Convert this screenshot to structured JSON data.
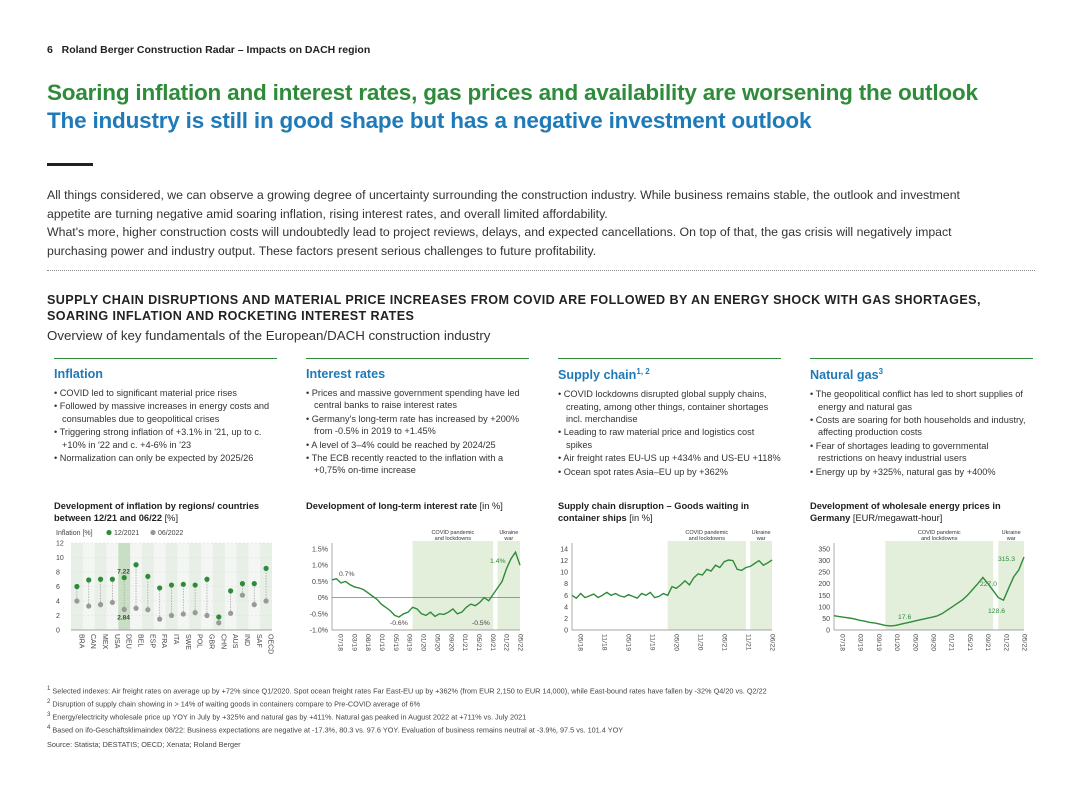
{
  "header": {
    "page_number": "6",
    "text": "Roland Berger Construction Radar – Impacts on DACH region"
  },
  "title1": "Soaring inflation and interest rates, gas prices and availability are worsening the outlook",
  "title2": "The industry is still in good shape but has a negative investment outlook",
  "intro": [
    "All things considered, we can observe a growing degree of uncertainty surrounding the construction industry. While business remains stable, the outlook and investment appetite are turning negative amid soaring inflation, rising interest rates, and overall limited affordability.",
    "What's more, higher construction costs will undoubtedly lead to project reviews, delays, and expected cancellations. On top of that, the gas crisis will negatively impact purchasing power and industry output. These factors present serious challenges to future profitability."
  ],
  "section": {
    "title": "SUPPLY CHAIN DISRUPTIONS AND MATERIAL PRICE INCREASES FROM COVID ARE FOLLOWED BY AN ENERGY SHOCK WITH GAS SHORTAGES, SOARING INFLATION AND ROCKETING INTEREST RATES",
    "subtitle": "Overview of key fundamentals of the European/DACH construction industry"
  },
  "panels": [
    {
      "title": "Inflation",
      "sup": "",
      "bullets": [
        "COVID led to significant material price rises",
        "Followed by massive increases in energy costs and consumables due to geopolitical crises",
        "Triggering strong inflation of +3.1% in '21, up to c. +10% in '22 and c. +4-6% in '23",
        "Normalization can only be expected by 2025/26"
      ],
      "chart_title_bold": "Development of inflation by regions/ countries between 12/21 and 06/22",
      "chart_title_rest": " [%]"
    },
    {
      "title": "Interest rates",
      "sup": "",
      "bullets": [
        "Prices and massive government spending have led central banks to raise interest rates",
        "Germany's long-term rate has increased by +200% from -0.5% in 2019 to +1.45%",
        "A level of 3–4% could be reached by 2024/25",
        "The ECB recently reacted to the inflation with a +0,75% on-time increase"
      ],
      "chart_title_bold": "Development of long-term interest rate",
      "chart_title_rest": " [in %]"
    },
    {
      "title": "Supply chain",
      "sup": "1, 2",
      "bullets": [
        "COVID lockdowns disrupted global supply chains, creating, among other things, container shortages incl. merchandise",
        "Leading to raw material price and logistics cost spikes",
        "Air freight rates EU-US up +434% and US-EU +118%",
        "Ocean spot rates Asia–EU up by +362%"
      ],
      "chart_title_bold": "Supply chain disruption – Goods waiting in container ships",
      "chart_title_rest": " [in %]"
    },
    {
      "title": "Natural gas",
      "sup": "3",
      "bullets": [
        "The geopolitical conflict has led to short supplies of energy and natural gas",
        "Costs are soaring for both households and industry, affecting production costs",
        "Fear of shortages leading to governmental restrictions on heavy industrial users",
        "Energy up by +325%, natural gas by +400%"
      ],
      "chart_title_bold": "Development of wholesale energy prices in Germany",
      "chart_title_rest": " [EUR/megawatt-hour]"
    }
  ],
  "colors": {
    "green": "#2e8b3a",
    "blue": "#1f7ab8",
    "shade": "#e3eedb",
    "grey": "#999999"
  },
  "chart_data": [
    {
      "type": "scatter",
      "legend": {
        "prefix": "Inflation [%]",
        "series": [
          "12/2021",
          "06/2022"
        ]
      },
      "categories": [
        "BRA",
        "CAN",
        "MEX",
        "USA",
        "DEU",
        "BEL",
        "ESP",
        "FRA",
        "ITA",
        "SWE",
        "POL",
        "GBR",
        "CHN",
        "AUS",
        "IND",
        "SAF",
        "OECD"
      ],
      "series": [
        {
          "name": "12/2021",
          "values": [
            4.0,
            3.3,
            3.5,
            3.8,
            2.84,
            3.0,
            2.8,
            1.5,
            2.0,
            2.2,
            2.4,
            2.0,
            1.0,
            2.3,
            4.8,
            3.5,
            4.0
          ]
        },
        {
          "name": "06/2022",
          "values": [
            6.0,
            6.9,
            7.0,
            7.0,
            7.22,
            9.0,
            7.4,
            5.8,
            6.2,
            6.3,
            6.2,
            7.0,
            1.8,
            5.4,
            6.4,
            6.4,
            8.5
          ]
        }
      ],
      "annotations": [
        "7.22",
        "2.84"
      ],
      "ylim": [
        0,
        12
      ],
      "yticks": [
        "0",
        "2",
        "4",
        "6",
        "8",
        "10",
        "12"
      ]
    },
    {
      "type": "line",
      "x_ticks": [
        "07/18",
        "03/19",
        "08/18",
        "01/19",
        "05/19",
        "09/19",
        "01/20",
        "05/20",
        "09/20",
        "01/21",
        "05/21",
        "09/21",
        "01/22",
        "05/22"
      ],
      "y": [
        0.55,
        0.58,
        0.45,
        0.5,
        0.4,
        0.33,
        0.3,
        0.25,
        0.15,
        0.05,
        -0.05,
        -0.2,
        -0.3,
        -0.4,
        -0.55,
        -0.6,
        -0.5,
        -0.45,
        -0.3,
        -0.35,
        -0.5,
        -0.55,
        -0.45,
        -0.58,
        -0.5,
        -0.52,
        -0.45,
        -0.35,
        -0.5,
        -0.45,
        -0.3,
        -0.2,
        -0.25,
        -0.15,
        0.0,
        -0.1,
        0.1,
        0.3,
        0.5,
        0.9,
        1.2,
        1.4,
        1.0
      ],
      "shade_labels": [
        "COVID pandemic and lockdowns",
        "Ukraine war"
      ],
      "annotations": [
        "0.7%",
        "-0.6%",
        "-0.5%",
        "1.4%"
      ],
      "ylim": [
        -1.0,
        1.5
      ],
      "yticks": [
        "1.5%",
        "1.0%",
        "0.5%",
        "0%",
        "-0.5%",
        "-1.0%"
      ]
    },
    {
      "type": "line",
      "x_ticks": [
        "05/18",
        "11/18",
        "05/19",
        "11/19",
        "05/20",
        "11/20",
        "05/21",
        "11/21",
        "06/22"
      ],
      "y": [
        6.0,
        5.5,
        6.3,
        5.6,
        5.9,
        6.2,
        5.6,
        6.0,
        6.5,
        6.0,
        6.3,
        5.9,
        5.7,
        6.1,
        5.8,
        5.5,
        6.3,
        6.0,
        6.5,
        5.6,
        5.8,
        6.3,
        6.0,
        7.5,
        7.2,
        7.8,
        8.5,
        7.8,
        9.0,
        9.7,
        9.5,
        10.5,
        10.2,
        11.2,
        10.8,
        11.8,
        12.1,
        12.0,
        10.5,
        10.3,
        10.8,
        11.0,
        11.5,
        12.0,
        11.2,
        11.6,
        12.1
      ],
      "shade_labels": [
        "COVID pandemic and lockdowns",
        "Ukraine war"
      ],
      "ylim": [
        0,
        14
      ],
      "yticks": [
        "14",
        "12",
        "10",
        "8",
        "6",
        "4",
        "2",
        "0"
      ]
    },
    {
      "type": "line",
      "x_ticks": [
        "07/18",
        "03/19",
        "09/19",
        "01/20",
        "05/20",
        "09/20",
        "01/21",
        "05/21",
        "09/21",
        "01/22",
        "05/22"
      ],
      "y": [
        62,
        58,
        55,
        52,
        48,
        42,
        38,
        33,
        30,
        25,
        20,
        17.6,
        20,
        25,
        30,
        35,
        40,
        45,
        50,
        55,
        60,
        70,
        85,
        100,
        115,
        130,
        150,
        175,
        200,
        227,
        200,
        170,
        140,
        128.6,
        180,
        230,
        260,
        315.3
      ],
      "shade_labels": [
        "COVID pandemic and lockdowns",
        "Ukraine war"
      ],
      "annotations": [
        "315.3",
        "227.0",
        "128.6",
        "17.6"
      ],
      "ylim": [
        0,
        350
      ],
      "yticks": [
        "350",
        "300",
        "250",
        "200",
        "150",
        "100",
        "50",
        "0"
      ]
    }
  ],
  "footnotes": [
    "Selected indexes: Air freight rates on average up by +72% since Q1/2020. Spot ocean freight rates Far East-EU up by +362% (from EUR 2,150 to EUR 14,000), while East-bound rates have fallen by -32% Q4/20 vs. Q2/22",
    "Disruption of supply chain showing in > 14% of waiting goods in containers compare to Pre-COVID average of 6%",
    "Energy/electricity wholesale price up YOY in July by +325% and natural gas by +411%. Natural gas peaked in August 2022 at +711% vs. July 2021",
    "Based on ifo-Geschäftsklimaindex 08/22: Business expectations are negative at -17.3%, 80.3 vs. 97.6 YOY. Evaluation of business remains neutral at -3.9%, 97.5 vs. 101.4 YOY"
  ],
  "source": "Source: Statista; DESTATIS; OECD; Xenata; Roland Berger"
}
